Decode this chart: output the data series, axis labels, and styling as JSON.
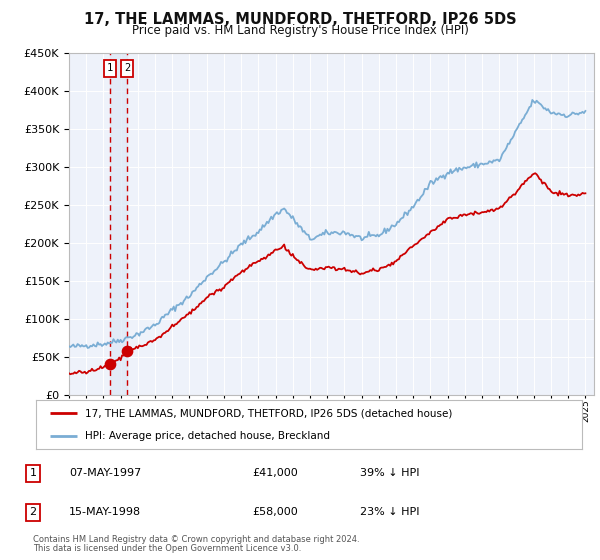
{
  "title": "17, THE LAMMAS, MUNDFORD, THETFORD, IP26 5DS",
  "subtitle": "Price paid vs. HM Land Registry's House Price Index (HPI)",
  "legend_line1": "17, THE LAMMAS, MUNDFORD, THETFORD, IP26 5DS (detached house)",
  "legend_line2": "HPI: Average price, detached house, Breckland",
  "footnote1": "Contains HM Land Registry data © Crown copyright and database right 2024.",
  "footnote2": "This data is licensed under the Open Government Licence v3.0.",
  "sale1_date": "07-MAY-1997",
  "sale1_price": "£41,000",
  "sale1_hpi": "39% ↓ HPI",
  "sale2_date": "15-MAY-1998",
  "sale2_price": "£58,000",
  "sale2_hpi": "23% ↓ HPI",
  "sale1_x": 1997.37,
  "sale1_y": 41000,
  "sale2_x": 1998.37,
  "sale2_y": 58000,
  "hpi_color": "#7aadd4",
  "price_color": "#cc0000",
  "vline_color": "#cc0000",
  "span_color": "#dde8f5",
  "ylim": [
    0,
    450000
  ],
  "xlim": [
    1995.0,
    2025.5
  ],
  "background_color": "#ffffff",
  "plot_background": "#eef2fa",
  "grid_color": "#ffffff",
  "hpi_anchors_x": [
    1995.0,
    1996.0,
    1997.0,
    1998.0,
    1999.0,
    2000.0,
    2001.0,
    2002.0,
    2003.0,
    2004.0,
    2005.0,
    2006.0,
    2007.0,
    2007.5,
    2008.0,
    2009.0,
    2010.0,
    2011.0,
    2012.0,
    2013.0,
    2014.0,
    2015.0,
    2016.0,
    2017.0,
    2018.0,
    2019.0,
    2020.0,
    2021.0,
    2022.0,
    2023.0,
    2024.0,
    2025.0
  ],
  "hpi_anchors_y": [
    63000,
    65000,
    67000,
    72000,
    80000,
    92000,
    112000,
    130000,
    155000,
    175000,
    198000,
    215000,
    238000,
    245000,
    232000,
    205000,
    213000,
    214000,
    206000,
    210000,
    225000,
    248000,
    278000,
    293000,
    299000,
    304000,
    309000,
    348000,
    388000,
    372000,
    368000,
    373000
  ],
  "price_anchors_x": [
    1995.0,
    1996.0,
    1997.0,
    1997.37,
    1998.0,
    1998.37,
    1999.0,
    2000.0,
    2001.0,
    2002.0,
    2003.0,
    2004.0,
    2005.0,
    2006.0,
    2007.0,
    2007.5,
    2008.0,
    2009.0,
    2010.0,
    2011.0,
    2012.0,
    2013.0,
    2014.0,
    2015.0,
    2016.0,
    2017.0,
    2018.0,
    2019.0,
    2020.0,
    2021.0,
    2022.0,
    2023.0,
    2024.0,
    2025.0
  ],
  "price_anchors_y": [
    28000,
    30000,
    36000,
    41000,
    48000,
    58000,
    63000,
    72000,
    90000,
    107000,
    128000,
    143000,
    162000,
    176000,
    190000,
    195000,
    183000,
    163000,
    168000,
    165000,
    160000,
    165000,
    176000,
    196000,
    214000,
    232000,
    237000,
    241000,
    245000,
    268000,
    293000,
    268000,
    262000,
    265000
  ],
  "noise_seed": 42,
  "hpi_noise_scale": 1800,
  "price_noise_scale": 1200
}
